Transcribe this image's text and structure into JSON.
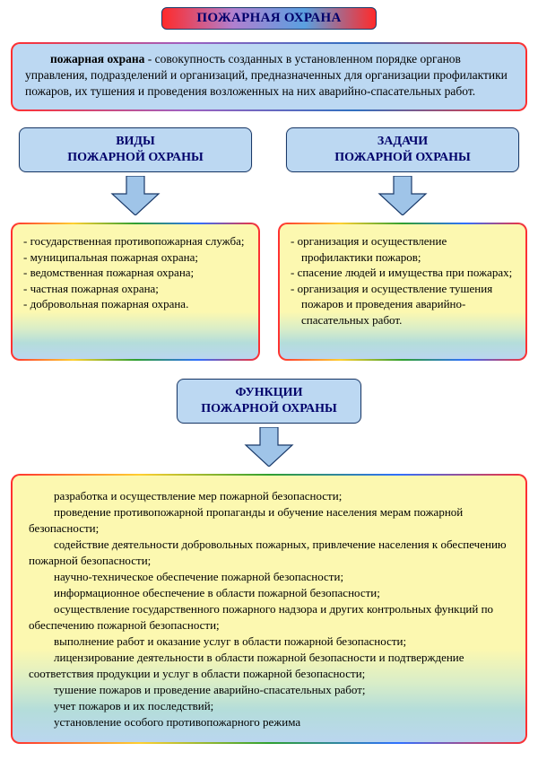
{
  "title": "ПОЖАРНАЯ ОХРАНА",
  "definition": {
    "term": "пожарная охрана",
    "text": " - совокупность созданных в установленном порядке органов управления, подразделений и организаций, предназначенных для организации профилактики пожаров, их тушения и проведения возложенных на них аварийно-спасательных работ."
  },
  "left": {
    "label_line1": "ВИДЫ",
    "label_line2": "ПОЖАРНОЙ ОХРАНЫ",
    "items": [
      "государственная противопожарная служба;",
      "муниципальная пожарная охрана;",
      "ведомственная пожарная охрана;",
      "частная пожарная охрана;",
      "добровольная пожарная охрана."
    ]
  },
  "right": {
    "label_line1": "ЗАДАЧИ",
    "label_line2": "ПОЖАРНОЙ ОХРАНЫ",
    "items": [
      "организация и осуществление профилактики пожаров;",
      "спасение людей и имущества при пожарах;",
      "организация и осуществление тушения пожаров и проведения аварийно-спасательных работ."
    ]
  },
  "functions": {
    "label_line1": "ФУНКЦИИ",
    "label_line2": "ПОЖАРНОЙ ОХРАНЫ",
    "items": [
      "разработка и осуществление мер пожарной безопасности;",
      "проведение противопожарной пропаганды и обучение населения мерам пожарной безопасности;",
      "содействие деятельности добровольных пожарных, привлечение населения к обеспечению пожарной безопасности;",
      "научно-техническое обеспечение пожарной безопасности;",
      "информационное обеспечение в области пожарной безопасности;",
      "осуществление государственного пожарного надзора и других контрольных функций по обеспечению пожарной безопасности;",
      "выполнение работ и оказание услуг в области пожарной безопасности;",
      "лицензирование деятельности в области пожарной безопасности и подтверждение соответствия продукции и услуг в области пожарной безопасности;",
      "тушение пожаров и проведение аварийно-спасательных работ;",
      "учет пожаров и их последствий;",
      "установление особого противопожарного режима"
    ]
  },
  "style": {
    "arrow_fill": "#9fc4e8",
    "arrow_stroke": "#1a3a6a",
    "label_bg": "#bcd8f2",
    "label_border": "#1a3a6a",
    "yellow_top": "#fcf8b0",
    "yellow_bottom": "#bad6ef",
    "title_text_color": "#00006a"
  }
}
